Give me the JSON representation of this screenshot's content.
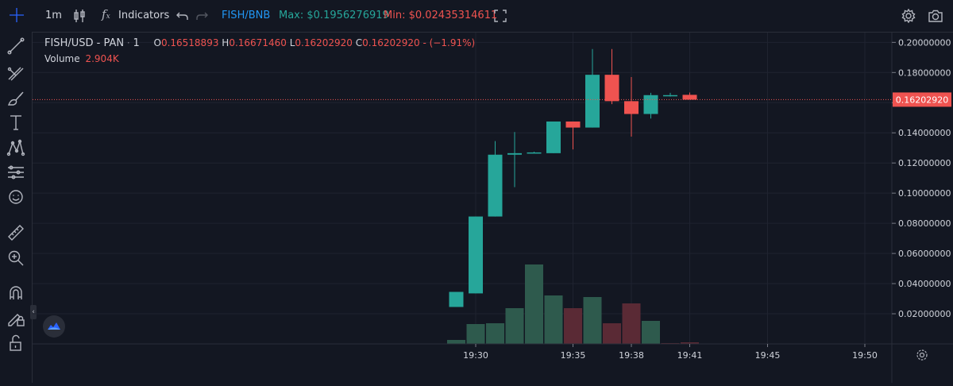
{
  "toolbar": {
    "interval": "1m",
    "indicators_label": "Indicators",
    "pair_link": "FISH/BNB",
    "max_label": "Max: $0.1956276919",
    "min_label": "Min: $0.02435314611",
    "colors": {
      "pair": "#2196f3",
      "max": "#26a69a",
      "min": "#ef5350"
    }
  },
  "legend": {
    "symbol": "FISH/USD - PAN",
    "interval": "1",
    "o_label": "O",
    "o_value": "0.16518893",
    "h_label": "H",
    "h_value": "0.16671460",
    "l_label": "L",
    "l_value": "0.16202920",
    "c_label": "C",
    "c_value": "0.16202920",
    "change": "- (−1.91%)",
    "volume_label": "Volume",
    "volume_value": "2.904K"
  },
  "left_tools": [
    "crosshair-icon",
    "trendline-icon",
    "fib-icon",
    "brush-icon",
    "text-icon",
    "pattern-icon",
    "measure-icon",
    "emoji-icon",
    "ruler-icon",
    "zoom-in-icon",
    "magnet-icon",
    "lock-draw-icon",
    "unlock-icon"
  ],
  "chart_data": {
    "type": "candlestick",
    "colors": {
      "up": "#26a69a",
      "down": "#ef5350",
      "vol_up": "#2e5a4d",
      "vol_down": "#5a2a35"
    },
    "y_ticks": [
      "0.20000000",
      "0.18000000",
      "0.16000000",
      "0.14000000",
      "0.12000000",
      "0.10000000",
      "0.08000000",
      "0.06000000",
      "0.04000000",
      "0.02000000"
    ],
    "y_tick_values": [
      0.2,
      0.18,
      0.16,
      0.14,
      0.12,
      0.1,
      0.08,
      0.06,
      0.04,
      0.02
    ],
    "ylim": [
      0.0,
      0.2065
    ],
    "x_ticks": [
      "19:30",
      "19:35",
      "19:38",
      "19:41",
      "19:45",
      "19:50"
    ],
    "x_tick_minutes": [
      30,
      35,
      38,
      41,
      45,
      50
    ],
    "last_price": "0.16202920",
    "last_value": 0.1620292,
    "grid": true,
    "candles": [
      {
        "t": 29,
        "o": 0.0245,
        "h": 0.0345,
        "l": 0.0245,
        "c": 0.0345
      },
      {
        "t": 30,
        "o": 0.0335,
        "h": 0.0845,
        "l": 0.0335,
        "c": 0.0845
      },
      {
        "t": 31,
        "o": 0.0845,
        "h": 0.1345,
        "l": 0.0845,
        "c": 0.1255
      },
      {
        "t": 32,
        "o": 0.1255,
        "h": 0.1405,
        "l": 0.104,
        "c": 0.1265
      },
      {
        "t": 33,
        "o": 0.1265,
        "h": 0.1275,
        "l": 0.1265,
        "c": 0.127
      },
      {
        "t": 34,
        "o": 0.1265,
        "h": 0.1475,
        "l": 0.1265,
        "c": 0.1475
      },
      {
        "t": 35,
        "o": 0.1475,
        "h": 0.1475,
        "l": 0.129,
        "c": 0.1435
      },
      {
        "t": 36,
        "o": 0.1435,
        "h": 0.1956,
        "l": 0.1435,
        "c": 0.1785
      },
      {
        "t": 37,
        "o": 0.1785,
        "h": 0.1956,
        "l": 0.159,
        "c": 0.161
      },
      {
        "t": 38,
        "o": 0.161,
        "h": 0.177,
        "l": 0.1375,
        "c": 0.1525
      },
      {
        "t": 39,
        "o": 0.1525,
        "h": 0.1665,
        "l": 0.1495,
        "c": 0.165
      },
      {
        "t": 40,
        "o": 0.165,
        "h": 0.1665,
        "l": 0.164,
        "c": 0.165
      },
      {
        "t": 41,
        "o": 0.1652,
        "h": 0.1667,
        "l": 0.162,
        "c": 0.162
      }
    ],
    "volume_max": 100,
    "volumes": [
      {
        "t": 29,
        "v": 5,
        "up": true
      },
      {
        "t": 30,
        "v": 25,
        "up": true
      },
      {
        "t": 31,
        "v": 26,
        "up": true
      },
      {
        "t": 32,
        "v": 45,
        "up": true
      },
      {
        "t": 33,
        "v": 100,
        "up": true
      },
      {
        "t": 34,
        "v": 61,
        "up": true
      },
      {
        "t": 35,
        "v": 45,
        "up": false
      },
      {
        "t": 36,
        "v": 59,
        "up": true
      },
      {
        "t": 37,
        "v": 26,
        "up": false
      },
      {
        "t": 38,
        "v": 51,
        "up": false
      },
      {
        "t": 39,
        "v": 29,
        "up": true
      },
      {
        "t": 40,
        "v": 1,
        "up": false
      },
      {
        "t": 41,
        "v": 2,
        "up": false
      }
    ]
  }
}
